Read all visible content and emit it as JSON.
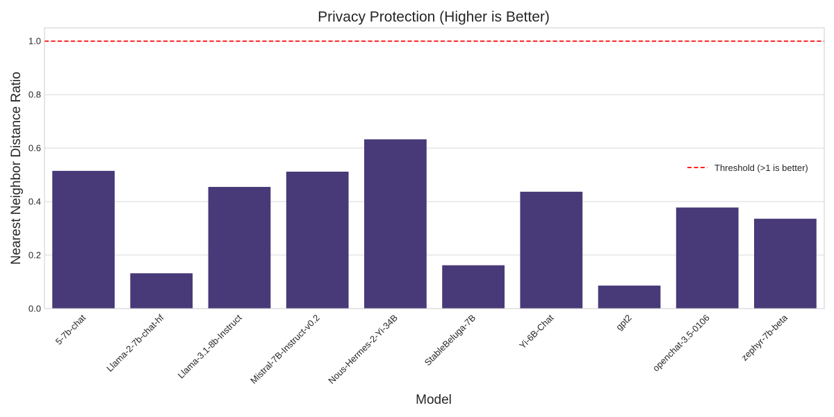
{
  "chart_data": {
    "type": "bar",
    "title": "Privacy Protection (Higher is Better)",
    "xlabel": "Model",
    "ylabel": "Nearest Neighbor Distance Ratio",
    "categories": [
      "5-7b-chat",
      "Llama-2-7b-chat-hf",
      "Llama-3.1-8b-Instruct",
      "Mistral-7B-Instruct-v0.2",
      "Nous-Hermes-2-Yi-34B",
      "StableBeluga-7B",
      "Yi-6B-Chat",
      "gpt2",
      "openchat-3.5-0106",
      "zephyr-7b-beta"
    ],
    "values": [
      0.515,
      0.132,
      0.455,
      0.512,
      0.633,
      0.162,
      0.437,
      0.086,
      0.378,
      0.336
    ],
    "ylim": [
      0,
      1.05
    ],
    "yticks": [
      "0.0",
      "0.2",
      "0.4",
      "0.6",
      "0.8",
      "1.0"
    ],
    "ytick_values": [
      0,
      0.2,
      0.4,
      0.6,
      0.8,
      1.0
    ],
    "threshold": {
      "value": 1.0,
      "label": "Threshold (>1 is better)",
      "color": "#ff0000",
      "style": "dashed"
    },
    "bar_color": "#483a78",
    "grid": true,
    "legend_position": "center-right"
  }
}
